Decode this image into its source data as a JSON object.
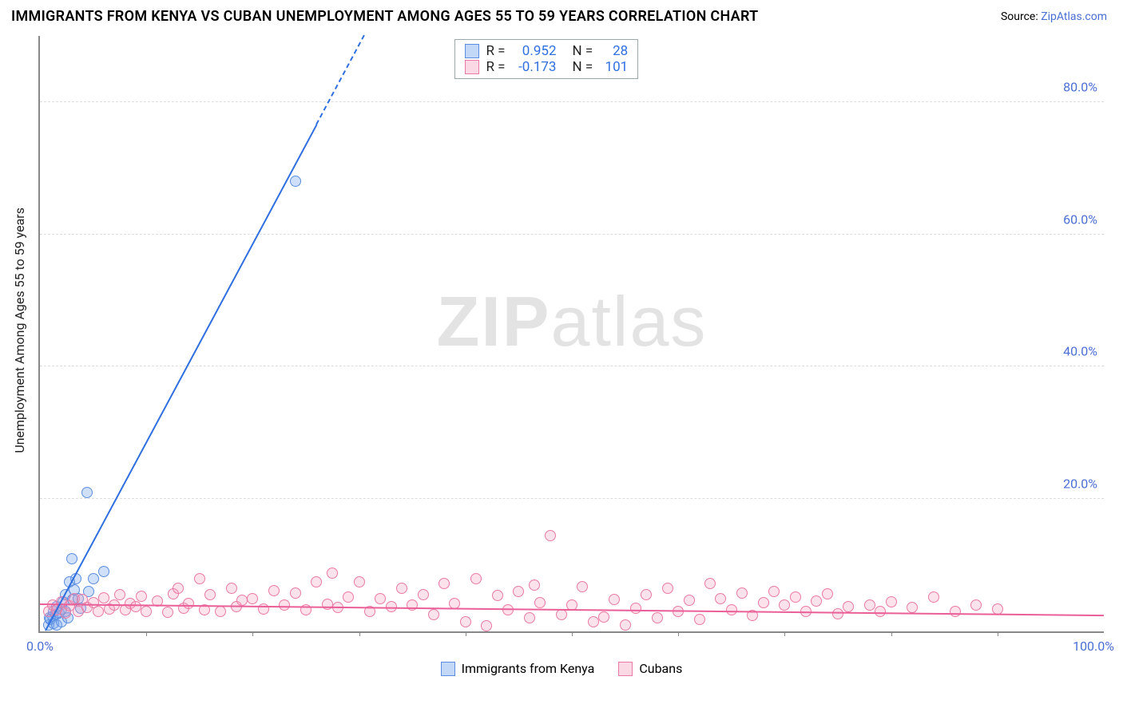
{
  "title": "IMMIGRANTS FROM KENYA VS CUBAN UNEMPLOYMENT AMONG AGES 55 TO 59 YEARS CORRELATION CHART",
  "source_prefix": "Source: ",
  "source_link": "ZipAtlas.com",
  "chart": {
    "type": "scatter",
    "xlim": [
      0,
      100
    ],
    "ylim": [
      0,
      90
    ],
    "xticks_pct": [
      0,
      10,
      20,
      30,
      40,
      50,
      60,
      70,
      80,
      90,
      100
    ],
    "ytick_labels": [
      "20.0%",
      "40.0%",
      "60.0%",
      "80.0%"
    ],
    "ytick_values": [
      20,
      40,
      60,
      80
    ],
    "xtick_0": "0.0%",
    "xtick_100": "100.0%",
    "ylabel": "Unemployment Among Ages 55 to 59 years",
    "grid_color": "#dddddd",
    "axis_color": "#888888",
    "background": "#ffffff",
    "watermark": {
      "left": "ZIP",
      "right": "atlas",
      "color": "#e3e3e3"
    },
    "series": [
      {
        "name": "Immigrants from Kenya",
        "color_fill": "rgba(121,167,237,0.35)",
        "color_stroke": "#5b8ee0",
        "line_color": "#2f6fe0",
        "R": "0.952",
        "N": "28",
        "regression": {
          "x1": 0.5,
          "y1": 0,
          "x2": 30.5,
          "y2": 90,
          "dash_from_x": 26
        },
        "points": [
          [
            0.8,
            1.0
          ],
          [
            0.9,
            2.0
          ],
          [
            1.0,
            1.8
          ],
          [
            1.2,
            2.3
          ],
          [
            1.3,
            3.0
          ],
          [
            1.3,
            1.2
          ],
          [
            1.5,
            2.5
          ],
          [
            1.6,
            1.0
          ],
          [
            1.6,
            3.8
          ],
          [
            1.8,
            2.8
          ],
          [
            2.0,
            3.4
          ],
          [
            2.0,
            1.5
          ],
          [
            2.2,
            4.5
          ],
          [
            2.4,
            5.5
          ],
          [
            2.4,
            3.0
          ],
          [
            2.6,
            2.0
          ],
          [
            2.8,
            7.5
          ],
          [
            3.0,
            11.0
          ],
          [
            3.1,
            4.8
          ],
          [
            3.2,
            6.3
          ],
          [
            3.4,
            8.0
          ],
          [
            3.6,
            5.0
          ],
          [
            3.8,
            3.5
          ],
          [
            4.4,
            21.0
          ],
          [
            4.6,
            6.0
          ],
          [
            5.0,
            8.0
          ],
          [
            6.0,
            9.0
          ],
          [
            24.0,
            68.0
          ]
        ]
      },
      {
        "name": "Cubans",
        "color_fill": "rgba(244,160,188,0.30)",
        "color_stroke": "#ea7aa5",
        "line_color": "#ea5f98",
        "R": "-0.173",
        "N": "101",
        "regression": {
          "x1": 0,
          "y1": 4.0,
          "x2": 100,
          "y2": 2.3
        },
        "points": [
          [
            0.8,
            3.0
          ],
          [
            1.2,
            4.0
          ],
          [
            1.6,
            3.2
          ],
          [
            2.0,
            4.5
          ],
          [
            2.4,
            2.8
          ],
          [
            2.8,
            3.9
          ],
          [
            3.2,
            5.0
          ],
          [
            3.6,
            3.0
          ],
          [
            4.0,
            4.8
          ],
          [
            4.4,
            3.6
          ],
          [
            5.0,
            4.3
          ],
          [
            5.5,
            3.0
          ],
          [
            6.0,
            5.1
          ],
          [
            6.5,
            3.4
          ],
          [
            7.0,
            4.0
          ],
          [
            7.5,
            5.5
          ],
          [
            8.0,
            3.2
          ],
          [
            8.5,
            4.2
          ],
          [
            9.0,
            3.7
          ],
          [
            9.5,
            5.3
          ],
          [
            10.0,
            3.0
          ],
          [
            11.0,
            4.6
          ],
          [
            12.0,
            2.9
          ],
          [
            12.5,
            5.7
          ],
          [
            13.0,
            6.5
          ],
          [
            13.5,
            3.5
          ],
          [
            14.0,
            4.2
          ],
          [
            15.0,
            8.0
          ],
          [
            15.5,
            3.3
          ],
          [
            16.0,
            5.5
          ],
          [
            17.0,
            3.0
          ],
          [
            18.0,
            6.5
          ],
          [
            18.5,
            3.8
          ],
          [
            19.0,
            4.7
          ],
          [
            20.0,
            5.0
          ],
          [
            21.0,
            3.4
          ],
          [
            22.0,
            6.2
          ],
          [
            23.0,
            4.0
          ],
          [
            24.0,
            5.8
          ],
          [
            25.0,
            3.2
          ],
          [
            26.0,
            7.5
          ],
          [
            27.0,
            4.1
          ],
          [
            27.5,
            8.8
          ],
          [
            28.0,
            3.6
          ],
          [
            29.0,
            5.2
          ],
          [
            30.0,
            7.5
          ],
          [
            31.0,
            3.0
          ],
          [
            32.0,
            5.0
          ],
          [
            33.0,
            3.7
          ],
          [
            34.0,
            6.5
          ],
          [
            35.0,
            4.0
          ],
          [
            36.0,
            5.5
          ],
          [
            37.0,
            2.5
          ],
          [
            38.0,
            7.2
          ],
          [
            39.0,
            4.2
          ],
          [
            40.0,
            1.5
          ],
          [
            41.0,
            8.0
          ],
          [
            42.0,
            0.8
          ],
          [
            43.0,
            5.4
          ],
          [
            44.0,
            3.2
          ],
          [
            45.0,
            6.0
          ],
          [
            46.0,
            2.0
          ],
          [
            46.5,
            7.0
          ],
          [
            47.0,
            4.3
          ],
          [
            48.0,
            14.5
          ],
          [
            49.0,
            2.5
          ],
          [
            50.0,
            4.0
          ],
          [
            51.0,
            6.8
          ],
          [
            52.0,
            1.4
          ],
          [
            53.0,
            2.2
          ],
          [
            54.0,
            4.8
          ],
          [
            55.0,
            1.0
          ],
          [
            56.0,
            3.5
          ],
          [
            57.0,
            5.5
          ],
          [
            58.0,
            2.0
          ],
          [
            59.0,
            6.5
          ],
          [
            60.0,
            3.0
          ],
          [
            61.0,
            4.7
          ],
          [
            62.0,
            1.8
          ],
          [
            63.0,
            7.2
          ],
          [
            64.0,
            5.0
          ],
          [
            65.0,
            3.2
          ],
          [
            66.0,
            5.8
          ],
          [
            67.0,
            2.4
          ],
          [
            68.0,
            4.4
          ],
          [
            69.0,
            6.0
          ],
          [
            70.0,
            4.0
          ],
          [
            71.0,
            5.2
          ],
          [
            72.0,
            3.0
          ],
          [
            73.0,
            4.6
          ],
          [
            74.0,
            5.7
          ],
          [
            75.0,
            2.6
          ],
          [
            76.0,
            3.8
          ],
          [
            78.0,
            4.0
          ],
          [
            79.0,
            3.0
          ],
          [
            80.0,
            4.5
          ],
          [
            82.0,
            3.6
          ],
          [
            84.0,
            5.2
          ],
          [
            86.0,
            3.0
          ],
          [
            88.0,
            4.0
          ],
          [
            90.0,
            3.4
          ]
        ]
      }
    ]
  },
  "legend_bottom": [
    {
      "swatch": "blue",
      "label": "Immigrants from Kenya"
    },
    {
      "swatch": "pink",
      "label": "Cubans"
    }
  ]
}
